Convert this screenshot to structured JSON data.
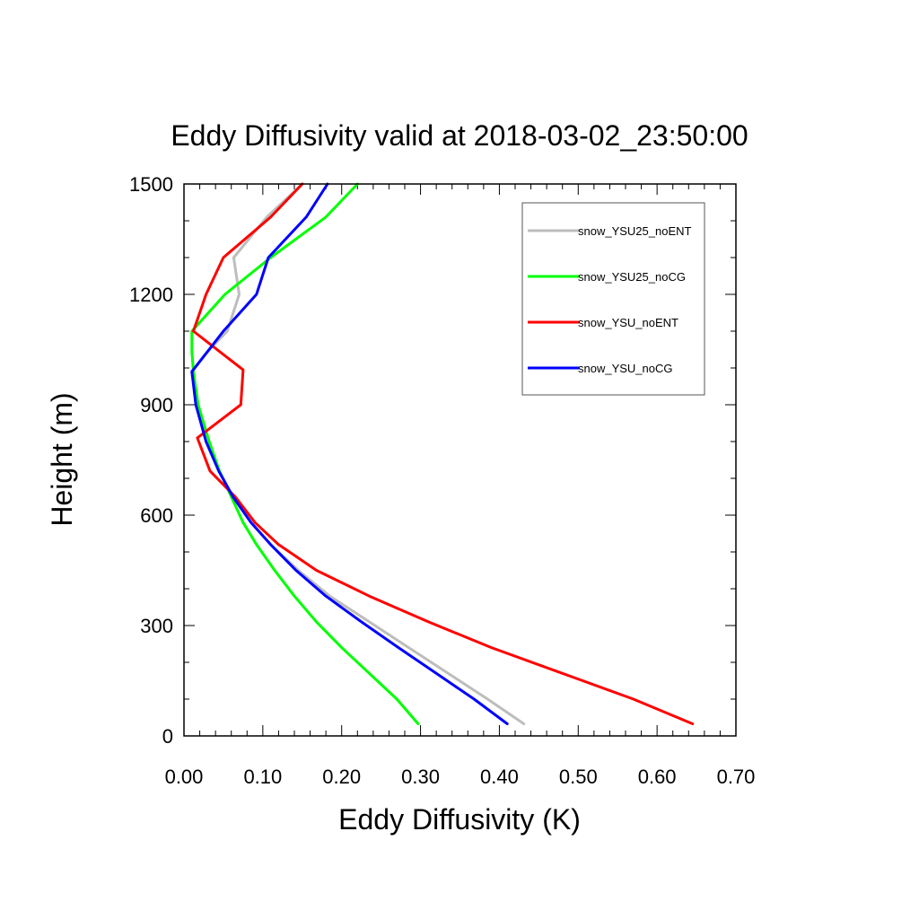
{
  "chart_data": {
    "type": "line",
    "title": "Eddy Diffusivity valid at 2018-03-02_23:50:00",
    "xlabel": "Eddy Diffusivity (K)",
    "ylabel": "Height (m)",
    "xlim": [
      0,
      0.7
    ],
    "ylim": [
      0,
      1500
    ],
    "xticks": [
      "0.00",
      "0.10",
      "0.20",
      "0.30",
      "0.40",
      "0.50",
      "0.60",
      "0.70"
    ],
    "yticks": [
      "0",
      "300",
      "600",
      "900",
      "1200",
      "1500"
    ],
    "legend_position": "top-right",
    "series": [
      {
        "name": "snow_YSU25_noENT",
        "color": "#bdbdbd",
        "points": [
          [
            0.431,
            33
          ],
          [
            0.385,
            100
          ],
          [
            0.335,
            170
          ],
          [
            0.285,
            240
          ],
          [
            0.235,
            310
          ],
          [
            0.185,
            380
          ],
          [
            0.145,
            450
          ],
          [
            0.11,
            520
          ],
          [
            0.085,
            580
          ],
          [
            0.062,
            650
          ],
          [
            0.045,
            720
          ],
          [
            0.028,
            800
          ],
          [
            0.016,
            900
          ],
          [
            0.01,
            990
          ],
          [
            0.03,
            1045
          ],
          [
            0.055,
            1100
          ],
          [
            0.07,
            1200
          ],
          [
            0.063,
            1300
          ],
          [
            0.105,
            1410
          ],
          [
            0.15,
            1500
          ]
        ]
      },
      {
        "name": "snow_YSU25_noCG",
        "color": "#00ff00",
        "points": [
          [
            0.297,
            33
          ],
          [
            0.27,
            100
          ],
          [
            0.235,
            170
          ],
          [
            0.2,
            240
          ],
          [
            0.168,
            310
          ],
          [
            0.14,
            380
          ],
          [
            0.115,
            450
          ],
          [
            0.092,
            520
          ],
          [
            0.075,
            580
          ],
          [
            0.06,
            650
          ],
          [
            0.045,
            720
          ],
          [
            0.032,
            800
          ],
          [
            0.018,
            900
          ],
          [
            0.012,
            990
          ],
          [
            0.01,
            1045
          ],
          [
            0.01,
            1100
          ],
          [
            0.052,
            1200
          ],
          [
            0.11,
            1300
          ],
          [
            0.18,
            1410
          ],
          [
            0.22,
            1500
          ]
        ]
      },
      {
        "name": "snow_YSU_noENT",
        "color": "#ff0000",
        "points": [
          [
            0.645,
            33
          ],
          [
            0.57,
            100
          ],
          [
            0.48,
            170
          ],
          [
            0.39,
            240
          ],
          [
            0.31,
            310
          ],
          [
            0.235,
            380
          ],
          [
            0.168,
            450
          ],
          [
            0.12,
            520
          ],
          [
            0.09,
            580
          ],
          [
            0.065,
            650
          ],
          [
            0.033,
            720
          ],
          [
            0.017,
            810
          ],
          [
            0.072,
            900
          ],
          [
            0.075,
            995
          ],
          [
            0.012,
            1100
          ],
          [
            0.028,
            1200
          ],
          [
            0.05,
            1300
          ],
          [
            0.11,
            1410
          ],
          [
            0.15,
            1500
          ]
        ]
      },
      {
        "name": "snow_YSU_noCG",
        "color": "#0000ff",
        "points": [
          [
            0.41,
            33
          ],
          [
            0.368,
            100
          ],
          [
            0.32,
            170
          ],
          [
            0.272,
            240
          ],
          [
            0.225,
            310
          ],
          [
            0.18,
            380
          ],
          [
            0.142,
            450
          ],
          [
            0.11,
            520
          ],
          [
            0.085,
            580
          ],
          [
            0.062,
            650
          ],
          [
            0.044,
            720
          ],
          [
            0.028,
            800
          ],
          [
            0.015,
            900
          ],
          [
            0.01,
            990
          ],
          [
            0.03,
            1045
          ],
          [
            0.05,
            1100
          ],
          [
            0.092,
            1200
          ],
          [
            0.107,
            1300
          ],
          [
            0.155,
            1410
          ],
          [
            0.182,
            1500
          ]
        ]
      }
    ]
  }
}
